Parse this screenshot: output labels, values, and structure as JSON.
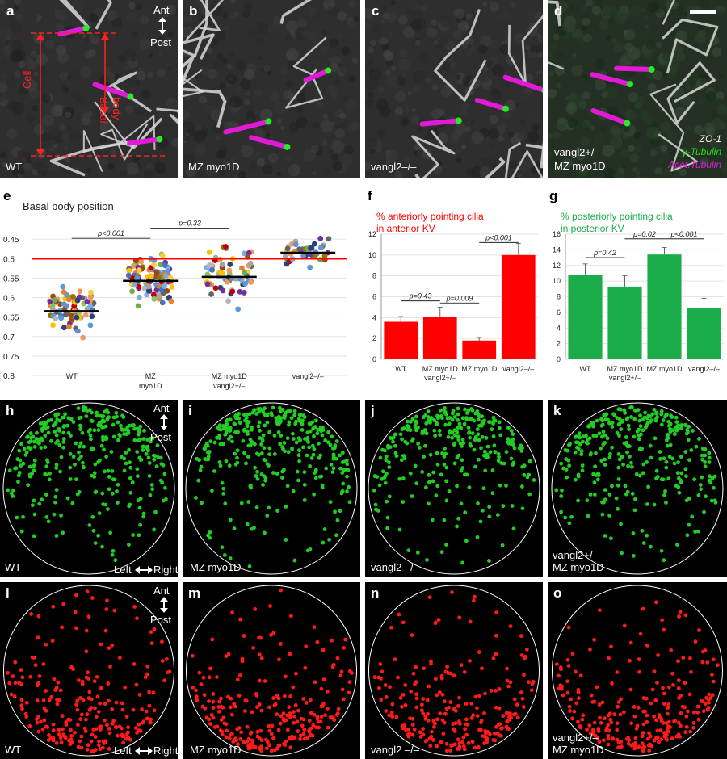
{
  "micrographs": [
    {
      "letter": "a",
      "caption": "WT",
      "axis_top": "Ant",
      "axis_bottom": "Post",
      "cell_label": "Cell",
      "bb_label_1": "Basal",
      "bb_label_2": "body"
    },
    {
      "letter": "b",
      "caption": "MZ myo1D"
    },
    {
      "letter": "c",
      "caption": "vangl2–/–"
    },
    {
      "letter": "d",
      "caption_1": "vangl2+/–",
      "caption_2": "MZ myo1D",
      "legend": [
        "ZO-1",
        "γ-Tubulin",
        "Acet.Tubulin"
      ]
    }
  ],
  "chart_e": {
    "letter": "e",
    "title": "Basal body position",
    "type": "scatter",
    "y_ticks": [
      "0.45",
      "0.5",
      "0.55",
      "0.6",
      "0.65",
      "0.7",
      "0.75",
      "0.8"
    ],
    "ylim": [
      0.4,
      0.8
    ],
    "categories": [
      "WT",
      "MZ\nmyo1D",
      "MZ myo1D\nvangl2+/–",
      "vangl2–/–"
    ],
    "means": [
      0.635,
      0.557,
      0.547,
      0.485
    ],
    "reference_line": 0.5,
    "comparisons": [
      {
        "label": "p<0.001"
      },
      {
        "label": "p=0.33"
      }
    ]
  },
  "chart_f": {
    "letter": "f",
    "title_1": "% anteriorly pointing cilia",
    "title_2": "in anterior KV",
    "type": "bar",
    "y_ticks": [
      "0",
      "2",
      "4",
      "6",
      "8",
      "10",
      "12"
    ],
    "ylim": [
      0,
      12
    ],
    "categories": [
      "WT",
      "MZ myo1D\nvangl2+/–",
      "MZ myo1D",
      "vangl2–/–"
    ],
    "values": [
      3.6,
      4.1,
      1.8,
      10.0
    ],
    "errors": [
      0.5,
      0.9,
      0.3,
      1.1
    ],
    "color": "#ff0000",
    "comparisons": [
      {
        "label": "p=0.43"
      },
      {
        "label": "p=0.009"
      },
      {
        "label": "p<0.001"
      }
    ]
  },
  "chart_g": {
    "letter": "g",
    "title_1": "% posteriorly pointing cilia",
    "title_2": "in posterior KV",
    "type": "bar",
    "y_ticks": [
      "0",
      "2",
      "4",
      "6",
      "8",
      "10",
      "12",
      "14",
      "16"
    ],
    "ylim": [
      0,
      16
    ],
    "categories": [
      "WT",
      "MZ myo1D\nvangl2+/–",
      "MZ myo1D",
      "vangl2–/–"
    ],
    "values": [
      10.8,
      9.3,
      13.4,
      6.5
    ],
    "errors": [
      1.4,
      1.4,
      0.9,
      1.3
    ],
    "color": "#1aad4a",
    "comparisons": [
      {
        "label": "p=0.42"
      },
      {
        "label": "p=0.02"
      },
      {
        "label": "p<0.001"
      }
    ]
  },
  "dot_panels_green": [
    {
      "letter": "h",
      "caption_1": "WT",
      "axis_top": "Ant",
      "axis_bottom": "Post",
      "lr_left": "Left",
      "lr_right": "Right"
    },
    {
      "letter": "i",
      "caption_1": "MZ myo1D"
    },
    {
      "letter": "j",
      "caption_1": "vangl2 –/–"
    },
    {
      "letter": "k",
      "caption_1": "vangl2+/–",
      "caption_2": "MZ myo1D"
    }
  ],
  "dot_panels_red": [
    {
      "letter": "l",
      "caption_1": "WT",
      "axis_top": "Ant",
      "axis_bottom": "Post",
      "lr_left": "Left",
      "lr_right": "Right"
    },
    {
      "letter": "m",
      "caption_1": "MZ myo1D"
    },
    {
      "letter": "n",
      "caption_1": "vangl2 –/–"
    },
    {
      "letter": "o",
      "caption_1": "vangl2+/–",
      "caption_2": "MZ myo1D"
    }
  ],
  "colors": {
    "green_dot": "#22cc22",
    "red_dot": "#ff1a1a",
    "magenta": "#e21ad8",
    "ref_line": "#ff0000"
  }
}
